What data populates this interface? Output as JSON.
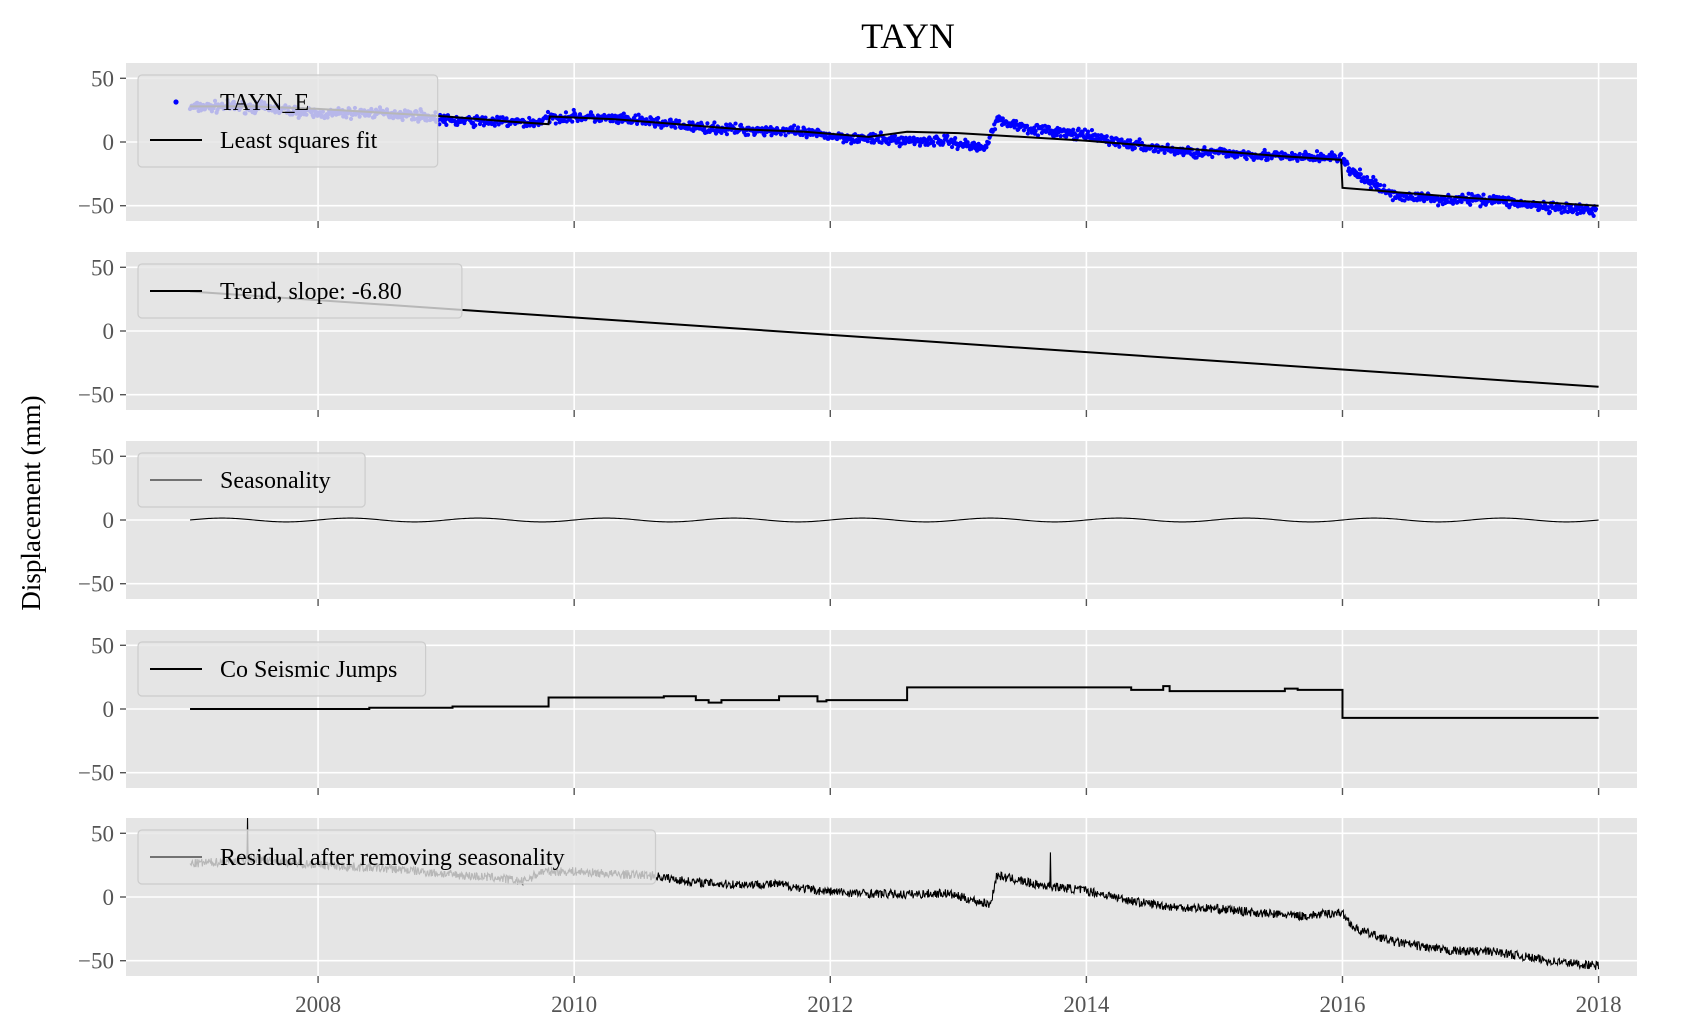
{
  "chart_data": {
    "type": "line",
    "title": "TAYN",
    "ylabel": "Displacement (mm)",
    "xlim": [
      2006.5,
      2018.3
    ],
    "ylim": [
      -62,
      62
    ],
    "x_ticks": [
      2008,
      2010,
      2012,
      2014,
      2016,
      2018
    ],
    "y_ticks": [
      -50,
      0,
      50
    ],
    "grid": true,
    "panels": [
      {
        "legend": {
          "placement": "upper-left",
          "entries": [
            "TAYN_E",
            "Least squares fit"
          ]
        },
        "series": [
          {
            "name": "TAYN_E",
            "kind": "scatter",
            "color": "#0000ff",
            "x": [
              2007.0,
              2007.3,
              2007.6,
              2008.0,
              2008.4,
              2008.8,
              2009.0,
              2009.4,
              2009.7,
              2009.8,
              2010.0,
              2010.3,
              2010.6,
              2010.9,
              2011.2,
              2011.6,
              2011.9,
              2012.2,
              2012.6,
              2012.9,
              2013.2,
              2013.3,
              2013.6,
              2014.0,
              2014.4,
              2014.8,
              2015.2,
              2015.6,
              2015.99,
              2016.05,
              2016.4,
              2016.8,
              2017.2,
              2017.6,
              2017.98
            ],
            "y": [
              27,
              28,
              27,
              22,
              23,
              21,
              17,
              16,
              15,
              19,
              20,
              18,
              16,
              12,
              10,
              9,
              6,
              3,
              1,
              1,
              -5,
              17,
              10,
              5,
              -3,
              -8,
              -9,
              -12,
              -12,
              -22,
              -42,
              -45,
              -45,
              -52,
              -54
            ]
          },
          {
            "name": "Least squares fit",
            "kind": "line",
            "color": "#000000",
            "x": [
              2007.0,
              2007.5,
              2008.0,
              2008.5,
              2009.0,
              2009.5,
              2009.8,
              2009.81,
              2010.3,
              2010.8,
              2011.3,
              2011.8,
              2012.3,
              2012.6,
              2013.0,
              2013.5,
              2014.0,
              2014.5,
              2015.0,
              2015.5,
              2015.99,
              2016.0,
              2016.5,
              2017.0,
              2017.5,
              2018.0
            ],
            "y": [
              28,
              28,
              26,
              23,
              20,
              16,
              14,
              20,
              18,
              14,
              10,
              8,
              4,
              8,
              7,
              4,
              1,
              -3,
              -7,
              -11,
              -14,
              -36,
              -40,
              -44,
              -47,
              -50
            ]
          }
        ]
      },
      {
        "legend": {
          "placement": "upper-left",
          "entries": [
            "Trend, slope: -6.80"
          ]
        },
        "series": [
          {
            "name": "Trend, slope: -6.80",
            "kind": "line",
            "color": "#000000",
            "x": [
              2007.0,
              2018.0
            ],
            "y": [
              31,
              -43.8
            ]
          }
        ]
      },
      {
        "legend": {
          "placement": "upper-left",
          "entries": [
            "Seasonality"
          ]
        },
        "series": [
          {
            "name": "Seasonality",
            "kind": "line",
            "color": "#000000",
            "x": [
              2007.0,
              2018.0
            ],
            "y": [
              0,
              0
            ],
            "amplitude": 1.5,
            "period_years": 1.0
          }
        ]
      },
      {
        "legend": {
          "placement": "upper-left",
          "entries": [
            "Co Seismic Jumps"
          ]
        },
        "series": [
          {
            "name": "Co Seismic Jumps",
            "kind": "step",
            "color": "#000000",
            "x": [
              2007.0,
              2008.4,
              2009.05,
              2009.8,
              2010.7,
              2010.95,
              2011.05,
              2011.15,
              2011.6,
              2011.9,
              2011.97,
              2012.6,
              2014.35,
              2014.6,
              2014.65,
              2015.55,
              2015.65,
              2016.0,
              2018.0
            ],
            "y": [
              0,
              1,
              2,
              9,
              10,
              7,
              5,
              7,
              10,
              6,
              7,
              17,
              15,
              18,
              14,
              16,
              15,
              -7,
              -7
            ]
          }
        ]
      },
      {
        "legend": {
          "placement": "upper-left",
          "entries": [
            "Residual after removing seasonality"
          ]
        },
        "series": [
          {
            "name": "Residual after removing seasonality",
            "kind": "line",
            "color": "#000000",
            "x": [
              2007.0,
              2007.3,
              2007.5,
              2007.8,
              2008.2,
              2008.6,
              2009.0,
              2009.4,
              2009.6,
              2009.75,
              2010.0,
              2010.3,
              2010.6,
              2010.9,
              2011.2,
              2011.6,
              2011.9,
              2012.2,
              2012.6,
              2012.9,
              2013.25,
              2013.3,
              2013.6,
              2014.0,
              2014.4,
              2014.7,
              2015.0,
              2015.4,
              2015.7,
              2015.99,
              2016.1,
              2016.4,
              2016.8,
              2017.2,
              2017.6,
              2018.0
            ],
            "y": [
              26,
              28,
              30,
              27,
              24,
              22,
              18,
              15,
              12,
              20,
              20,
              18,
              17,
              12,
              10,
              10,
              5,
              3,
              2,
              3,
              -6,
              17,
              10,
              5,
              -4,
              -8,
              -9,
              -13,
              -15,
              -12,
              -25,
              -35,
              -42,
              -43,
              -50,
              -54
            ]
          }
        ]
      }
    ]
  }
}
